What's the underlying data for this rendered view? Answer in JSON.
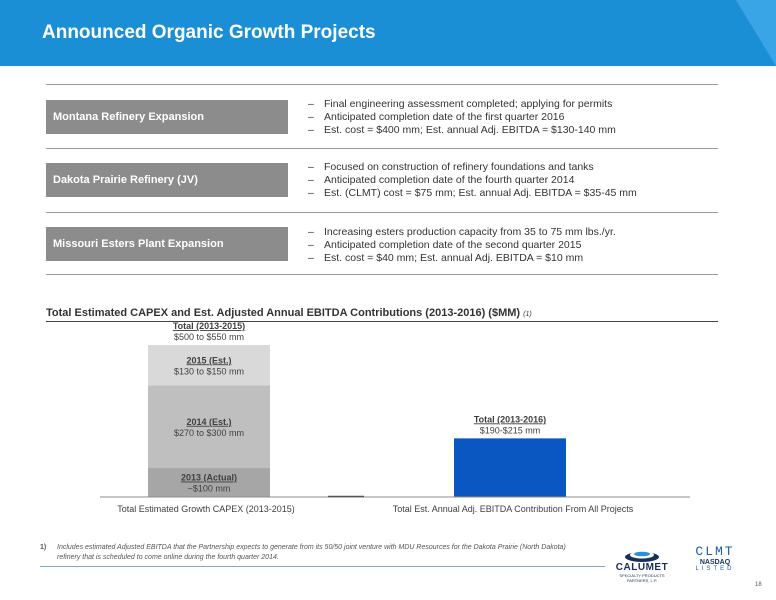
{
  "title": "Announced Organic Growth Projects",
  "projects": [
    {
      "name": "Montana Refinery Expansion",
      "bullets": [
        "Final engineering assessment completed; applying for permits",
        "Anticipated completion date of the first quarter 2016",
        "Est. cost = $400 mm; Est. annual Adj. EBITDA  = $130-140 mm"
      ]
    },
    {
      "name": "Dakota Prairie Refinery (JV)",
      "bullets": [
        "Focused on construction of refinery foundations and tanks",
        "Anticipated completion date of the fourth quarter 2014",
        "Est. (CLMT)  cost = $75 mm; Est. annual Adj. EBITDA  = $35-45 mm"
      ]
    },
    {
      "name": "Missouri Esters Plant Expansion",
      "bullets": [
        "Increasing esters production capacity from 35 to 75 mm lbs./yr.",
        "Anticipated completion date of the second quarter 2015",
        "Est. cost = $40 mm; Est. annual Adj. EBITDA  = $10 mm"
      ]
    }
  ],
  "bullet_dash": "–",
  "chart_title": "Total Estimated CAPEX and Est. Adjusted Annual EBITDA  Contributions (2013-2016) ($MM)",
  "chart_title_note": "(1)",
  "chart_data": {
    "type": "bar",
    "stacked": true,
    "categories": [
      "Total Estimated Growth CAPEX (2013-2015)",
      "Total Est. Annual Adj. EBITDA Contribution From All Projects"
    ],
    "series": [
      {
        "name": "2013 (Actual)",
        "values": [
          100,
          null
        ],
        "color": "#a6a6a6"
      },
      {
        "name": "2014 (Est.)",
        "values": [
          285,
          null
        ],
        "color": "#bfbfbf"
      },
      {
        "name": "2015 (Est.)",
        "values": [
          140,
          null
        ],
        "color": "#d9d9d9"
      },
      {
        "name": "Total (2013-2016)",
        "values": [
          null,
          202.5
        ],
        "color": "#0b57c2"
      }
    ],
    "segment_labels": [
      {
        "heading": "2013 (Actual)",
        "value": "~$100 mm"
      },
      {
        "heading": "2014 (Est.)",
        "value": "$270 to $300 mm"
      },
      {
        "heading": "2015 (Est.)",
        "value": "$130 to $150 mm"
      }
    ],
    "total_labels": [
      {
        "heading": "Total (2013-2015)",
        "value": "$500 to $550 mm"
      },
      {
        "heading": "Total (2013-2016)",
        "value": "$190-$215 mm"
      }
    ],
    "ylim": [
      0,
      525
    ],
    "grid": false,
    "legend": "none"
  },
  "footnote": {
    "number": "1)",
    "text": "Includes estimated Adjusted EBITDA that the Partnership expects to generate from its 50/50 joint venture with MDU Resources for the Dakota Prairie (North Dakota) refinery that is scheduled  to come  online during  the fourth quarter  2014."
  },
  "logos": {
    "calumet_name": "CALUMET",
    "calumet_sub": "SPECIALTY PRODUCTS PARTNERS, L.P.",
    "ticker": "CLMT",
    "nasdaq": "NASDAQ",
    "listed": "LISTED"
  },
  "page_number": "18"
}
